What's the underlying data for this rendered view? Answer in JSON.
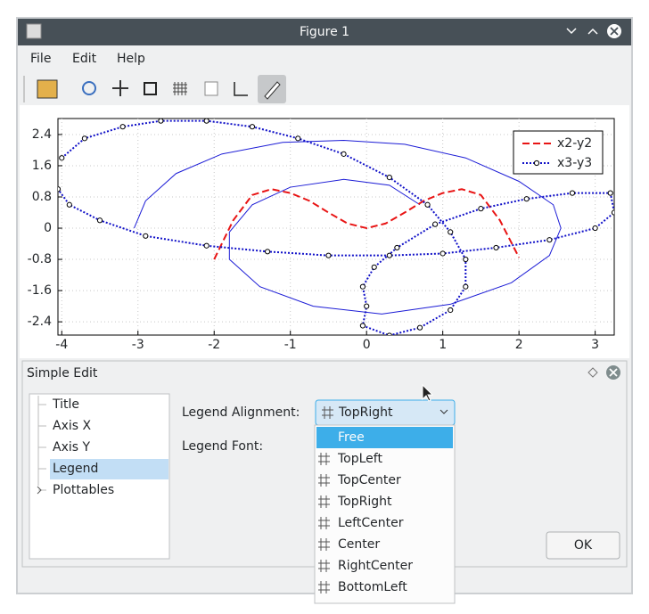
{
  "window": {
    "title": "Figure 1"
  },
  "menu": [
    "File",
    "Edit",
    "Help"
  ],
  "chart_data": {
    "type": "line",
    "xlim": [
      -4.05,
      3.25
    ],
    "ylim": [
      -2.74,
      2.81
    ],
    "xticks": [
      -4,
      -3,
      -2,
      -1,
      0,
      1,
      2,
      3
    ],
    "yticks": [
      -2.4,
      -1.6,
      -0.8,
      0,
      0.8,
      1.6,
      2.4
    ],
    "grid": true,
    "legend": "top-right",
    "series": [
      {
        "color": "#1c1cd6",
        "style": "solid",
        "x": [
          -3.05,
          -2.9,
          -2.5,
          -1.9,
          -1.1,
          -0.3,
          0.5,
          1.3,
          2.0,
          2.45,
          2.55,
          2.4,
          1.9,
          1.1,
          0.2,
          -0.7,
          -1.4,
          -1.8,
          -1.8,
          -1.5,
          -1.0,
          -0.3,
          0.3,
          0.7
        ],
        "values": [
          0,
          0.7,
          1.4,
          1.9,
          2.2,
          2.25,
          2.15,
          1.8,
          1.2,
          0.6,
          0.0,
          -0.7,
          -1.4,
          -1.95,
          -2.2,
          -2.0,
          -1.5,
          -0.8,
          -0.1,
          0.6,
          1.05,
          1.25,
          1.1,
          0.6
        ]
      },
      {
        "name": "x2-y2",
        "color": "#e81414",
        "style": "dashed",
        "x": [
          -2,
          -1.75,
          -1.5,
          -1.25,
          -1,
          -0.75,
          -0.5,
          -0.25,
          0,
          0.25,
          0.5,
          0.75,
          1,
          1.25,
          1.5,
          1.75,
          2
        ],
        "values": [
          -0.8,
          0.2,
          0.85,
          1.0,
          0.9,
          0.7,
          0.4,
          0.12,
          0,
          0.12,
          0.4,
          0.7,
          0.9,
          1.0,
          0.85,
          0.2,
          -0.75
        ]
      },
      {
        "name": "x3-y3",
        "color": "#1010c8",
        "style": "dotted",
        "markers": true,
        "x": [
          -4.0,
          -3.7,
          -3.2,
          -2.7,
          -2.1,
          -1.5,
          -0.9,
          -0.3,
          0.3,
          0.8,
          1.1,
          1.3,
          1.3,
          1.1,
          0.7,
          0.3,
          -0.05,
          0.0,
          -0.05,
          0.1,
          0.4,
          0.9,
          1.5,
          2.1,
          2.7,
          3.2,
          3.25,
          3.0,
          2.4,
          1.7,
          1.0,
          0.3,
          -0.5,
          -1.3,
          -2.1,
          -2.9,
          -3.5,
          -3.9,
          -4.05
        ],
        "values": [
          1.8,
          2.3,
          2.6,
          2.75,
          2.75,
          2.6,
          2.3,
          1.9,
          1.3,
          0.6,
          -0.1,
          -0.8,
          -1.5,
          -2.1,
          -2.55,
          -2.75,
          -2.5,
          -2.0,
          -1.5,
          -1.0,
          -0.5,
          0.1,
          0.5,
          0.75,
          0.9,
          0.9,
          0.4,
          0.0,
          -0.3,
          -0.5,
          -0.65,
          -0.7,
          -0.7,
          -0.6,
          -0.45,
          -0.2,
          0.2,
          0.6,
          1.0
        ]
      }
    ]
  },
  "dialog": {
    "title": "Simple Edit",
    "tree": [
      "Title",
      "Axis X",
      "Axis Y",
      "Legend",
      "Plottables"
    ],
    "selected_index": 3,
    "labels": [
      "Legend Alignment:",
      "Legend Font:"
    ],
    "options": [
      "Free",
      "TopLeft",
      "TopCenter",
      "TopRight",
      "LeftCenter",
      "Center",
      "RightCenter",
      "BottomLeft"
    ],
    "selected_option": 3,
    "highlighted_option": 0,
    "button": "OK"
  }
}
